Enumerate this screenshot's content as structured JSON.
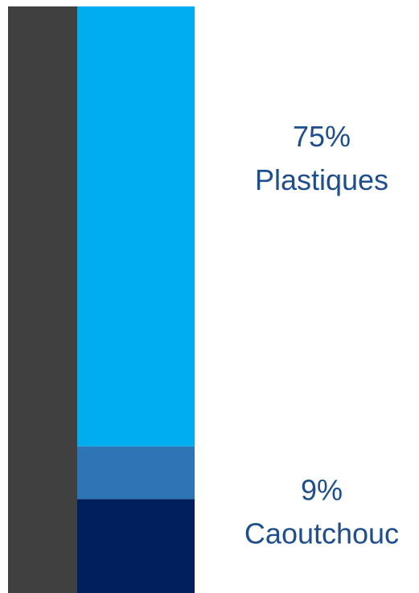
{
  "chart_data": {
    "type": "bar",
    "orientation": "vertical-stacked",
    "total": 100,
    "reference_bar_color": "#404040",
    "stacked_segments_from_top": [
      {
        "percent_text": "75%",
        "name": "Plastiques",
        "value": 75,
        "color": "#00AEEF",
        "text_color": "#1F4E8C"
      },
      {
        "percent_text": "9%",
        "name": "Caoutchouc",
        "value": 9,
        "color": "#2E75B6",
        "text_color": "#1F4E8C"
      },
      {
        "percent_text": "",
        "name": "",
        "value": 16,
        "color": "#001F5C",
        "text_color": "#1F4E8C"
      }
    ]
  }
}
